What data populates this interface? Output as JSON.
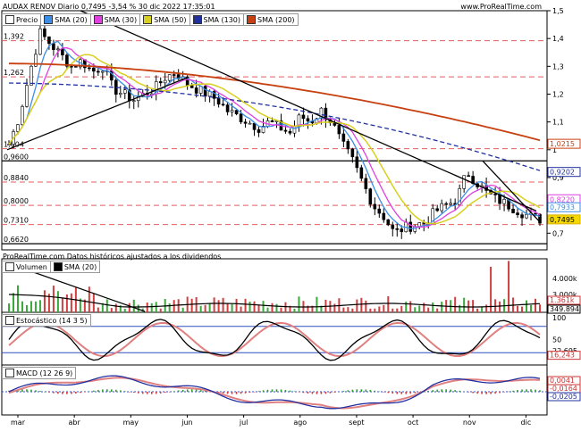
{
  "header": {
    "title": "AUDAX RENOV Diario 0,7495 -3,54 % 30 dic 2022 17:35:01",
    "site": "www.ProRealTime.com",
    "source_note": "ProRealTime.com  Datos históricos ajustados a los dividendos"
  },
  "legends": {
    "price": [
      {
        "label": "Precio",
        "color": "#ffffff"
      },
      {
        "label": "SMA (20)",
        "color": "#3a8ee6"
      },
      {
        "label": "SMA (30)",
        "color": "#e040e0"
      },
      {
        "label": "SMA (50)",
        "color": "#d8d020"
      },
      {
        "label": "SMA (130)",
        "color": "#2030a0"
      },
      {
        "label": "SMA (200)",
        "color": "#c84010"
      }
    ],
    "volume": [
      {
        "label": "Volumen",
        "color": "#ffffff"
      },
      {
        "label": "SMA (20)",
        "color": "#000000"
      }
    ],
    "stoch": [
      {
        "label": "Estocástico (14 3 5)",
        "color": "#ffffff"
      }
    ],
    "macd": [
      {
        "label": "MACD (12 26 9)",
        "color": "#ffffff"
      }
    ]
  },
  "chart_data": [
    {
      "type": "candlestick",
      "panel": "price",
      "months": [
        "mar",
        "abr",
        "may",
        "jun",
        "jul",
        "ago",
        "sept",
        "oct",
        "nov",
        "dic"
      ],
      "y_ticks": [
        "1,5",
        "1,4",
        "1,3",
        "1,2",
        "1,1",
        "1",
        "0,9",
        "0,8",
        "0,7"
      ],
      "ylim": [
        0.64,
        1.5
      ],
      "levels": [
        "1,392",
        "1,262",
        "1,004",
        "0,9600",
        "0,8840",
        "0,8000",
        "0,7310",
        "0,6620"
      ],
      "right_labels": [
        {
          "text": "1,0215",
          "value": 1.0215,
          "color": "#c84010"
        },
        {
          "text": "0,9202",
          "value": 0.9202,
          "color": "#2030a0"
        },
        {
          "text": "0,8220",
          "value": 0.822,
          "color": "#e040e0"
        },
        {
          "text": "0,7933",
          "value": 0.7933,
          "color": "#3a8ee6"
        },
        {
          "text": "0,7495",
          "value": 0.7495,
          "color": "#d8b000"
        }
      ],
      "close": [
        1.02,
        1.12,
        1.28,
        1.42,
        1.38,
        1.34,
        1.3,
        1.32,
        1.28,
        1.3,
        1.22,
        1.2,
        1.18,
        1.2,
        1.22,
        1.26,
        1.28,
        1.24,
        1.22,
        1.2,
        1.18,
        1.14,
        1.12,
        1.1,
        1.08,
        1.1,
        1.08,
        1.06,
        1.12,
        1.1,
        1.14,
        1.1,
        1.02,
        0.96,
        0.88,
        0.8,
        0.76,
        0.7,
        0.72,
        0.73,
        0.74,
        0.78,
        0.8,
        0.82,
        0.92,
        0.88,
        0.84,
        0.82,
        0.8,
        0.78,
        0.76,
        0.75
      ]
    },
    {
      "type": "bar",
      "panel": "volume",
      "y_ticks": [
        "4.000k",
        "3.000k"
      ],
      "right_labels": [
        {
          "text": "1.361k",
          "color": "#cc3333"
        },
        {
          "text": "349.894",
          "color": "#000000"
        }
      ]
    },
    {
      "type": "line",
      "panel": "stochastic",
      "y_ticks": [
        "100",
        "50"
      ],
      "right_labels": [
        {
          "text": "22,695",
          "color": "#000000"
        },
        {
          "text": "16,243",
          "color": "#cc3333"
        }
      ]
    },
    {
      "type": "line",
      "panel": "macd",
      "right_labels": [
        {
          "text": "0,0041",
          "color": "#cc3333"
        },
        {
          "text": "-0,0164",
          "color": "#cc3333"
        },
        {
          "text": "-0,0205",
          "color": "#2030a0"
        }
      ]
    }
  ]
}
